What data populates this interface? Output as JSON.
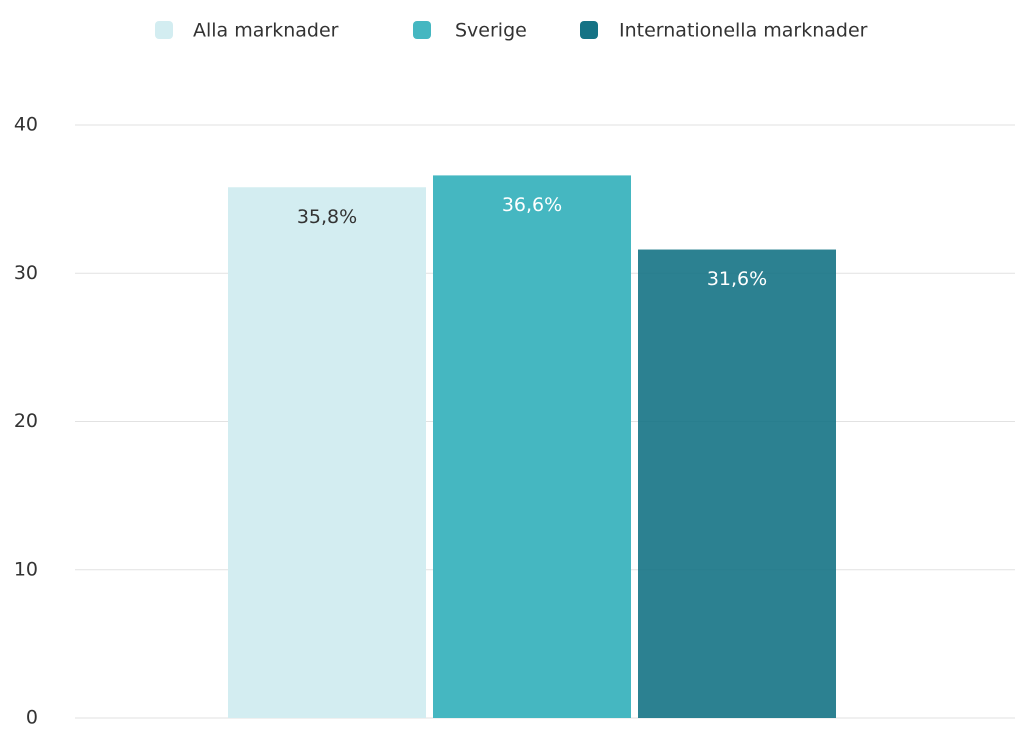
{
  "chart_data": {
    "type": "bar",
    "categories": [
      null
    ],
    "series": [
      {
        "name": "Alla marknader",
        "color": "#d3edf1",
        "values": [
          35.8
        ],
        "value_labels": [
          "35,8%"
        ]
      },
      {
        "name": "Sverige",
        "color": "#45b7c1",
        "values": [
          36.6
        ],
        "value_labels": [
          "36,6%"
        ]
      },
      {
        "name": "Internationella marknader",
        "color": "#157385",
        "values": [
          31.6
        ],
        "value_labels": [
          "31,6%"
        ]
      }
    ],
    "ylim": [
      0,
      40
    ],
    "yticks": [
      0,
      10,
      20,
      30,
      40
    ],
    "grid": true,
    "legend": "top"
  }
}
